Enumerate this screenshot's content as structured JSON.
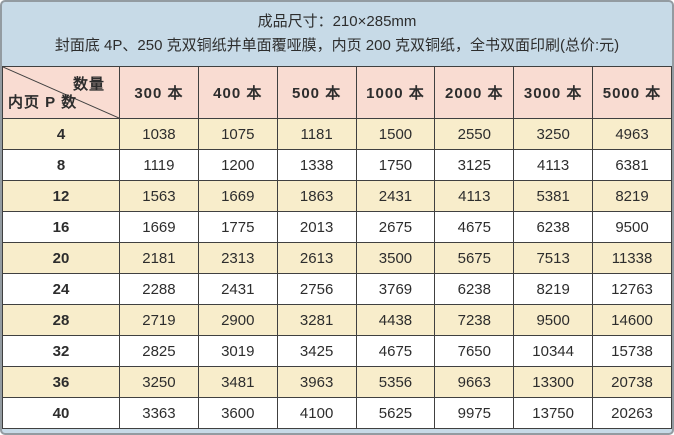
{
  "banner": {
    "line1": "成品尺寸：210×285mm",
    "line2": "封面底 4P、250 克双铜纸并单面覆哑膜，内页 200 克双铜纸，全书双面印刷(总价:元)"
  },
  "chart_data": {
    "type": "table",
    "title": "成品尺寸：210×285mm",
    "subtitle": "封面底 4P、250 克双铜纸并单面覆哑膜，内页 200 克双铜纸，全书双面印刷(总价:元)",
    "corner_top_right": "数量",
    "corner_bottom_left": "内页 P 数",
    "columns": [
      "300 本",
      "400 本",
      "500 本",
      "1000 本",
      "2000 本",
      "3000 本",
      "5000 本"
    ],
    "row_labels": [
      "4",
      "8",
      "12",
      "16",
      "20",
      "24",
      "28",
      "32",
      "36",
      "40"
    ],
    "rows": [
      [
        1038,
        1075,
        1181,
        1500,
        2550,
        3250,
        4963
      ],
      [
        1119,
        1200,
        1338,
        1750,
        3125,
        4113,
        6381
      ],
      [
        1563,
        1669,
        1863,
        2431,
        4113,
        5381,
        8219
      ],
      [
        1669,
        1775,
        2013,
        2675,
        4675,
        6238,
        9500
      ],
      [
        2181,
        2313,
        2613,
        3500,
        5675,
        7513,
        11338
      ],
      [
        2288,
        2431,
        2756,
        3769,
        6238,
        8219,
        12763
      ],
      [
        2719,
        2900,
        3281,
        4438,
        7238,
        9500,
        14600
      ],
      [
        2825,
        3019,
        3425,
        4675,
        7650,
        10344,
        15738
      ],
      [
        3250,
        3481,
        3963,
        5356,
        9663,
        13300,
        20738
      ],
      [
        3363,
        3600,
        4100,
        5625,
        9975,
        13750,
        20263
      ]
    ]
  },
  "colors": {
    "banner_bg": "#c7dae7",
    "header_bg": "#f9dcd2",
    "row_alt_bg": "#f8edcb",
    "row_bg": "#ffffff",
    "border": "#404040",
    "outer_border": "#939ba1",
    "text": "#2d2d2d"
  }
}
